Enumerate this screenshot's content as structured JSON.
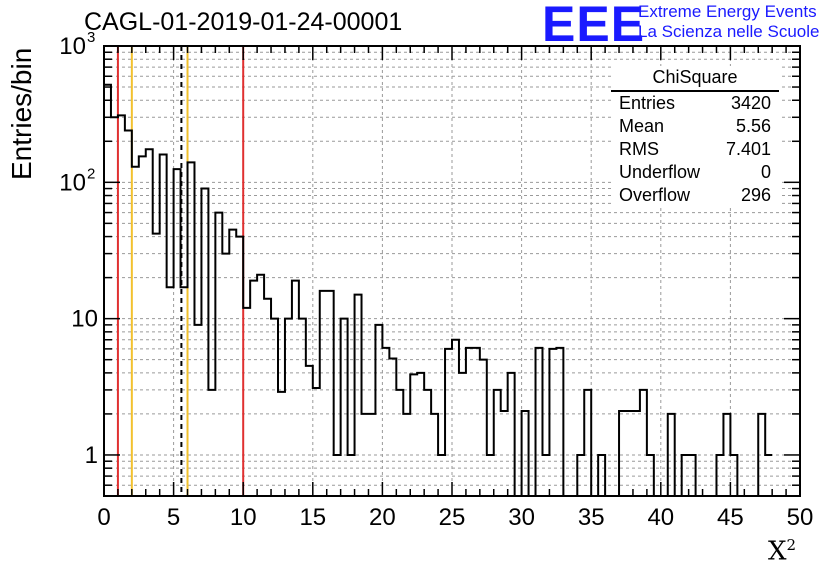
{
  "run_title": "CAGL-01-2019-01-24-00001",
  "branding": {
    "logo": "EEE",
    "line1": "Extreme Energy Events",
    "line2": "La Scienza nelle Scuole",
    "color": "#1a1aff"
  },
  "stats_box": {
    "title": "ChiSquare",
    "rows": [
      {
        "label": "Entries",
        "value": "3420"
      },
      {
        "label": "Mean",
        "value": "5.56"
      },
      {
        "label": "RMS",
        "value": "7.401"
      },
      {
        "label": "Underflow",
        "value": "0"
      },
      {
        "label": "Overflow",
        "value": "296"
      }
    ]
  },
  "chart_data": {
    "type": "histogram",
    "ylabel": "Entries/bin",
    "xlabel": "X",
    "xlabel_superscript": "2",
    "xlim": [
      0,
      50
    ],
    "ylim": [
      0.5,
      1000
    ],
    "yscale": "log",
    "grid": true,
    "bin_width": 0.5,
    "x_ticks": [
      0,
      5,
      10,
      15,
      20,
      25,
      30,
      35,
      40,
      45,
      50
    ],
    "y_ticks": [
      {
        "value": 1,
        "label": "1"
      },
      {
        "value": 10,
        "label": "10"
      },
      {
        "value": 100,
        "label": "10",
        "exp": "2"
      },
      {
        "value": 1000,
        "label": "10",
        "exp": "3"
      }
    ],
    "values": [
      520,
      300,
      310,
      240,
      130,
      155,
      175,
      42,
      160,
      17,
      125,
      17,
      140,
      9,
      90,
      3,
      60,
      30,
      45,
      40,
      12,
      19,
      21,
      14,
      10,
      2.9,
      10,
      19,
      10,
      4.5,
      3.1,
      16,
      16,
      1,
      10,
      1,
      15,
      2,
      2,
      9,
      6.1,
      5.1,
      3,
      2,
      3.9,
      4,
      3,
      2,
      1,
      6,
      7,
      4,
      6.1,
      6.1,
      5,
      1,
      3,
      2.1,
      4,
      0,
      2.1,
      0,
      6.1,
      1,
      6,
      6.1,
      0,
      0,
      1,
      3,
      0,
      1,
      0,
      0,
      2.1,
      2.1,
      2.1,
      3,
      1,
      0,
      0,
      2,
      0,
      1,
      1,
      0,
      0,
      0,
      1,
      2,
      1,
      0,
      0,
      0,
      2,
      1
    ],
    "vlines": [
      {
        "x": 1.0,
        "color": "#e03030",
        "style": "solid"
      },
      {
        "x": 2.0,
        "color": "#f2c12e",
        "style": "solid"
      },
      {
        "x": 5.56,
        "color": "#000000",
        "style": "dashed"
      },
      {
        "x": 6.0,
        "color": "#f2c12e",
        "style": "solid"
      },
      {
        "x": 10.0,
        "color": "#e03030",
        "style": "solid"
      }
    ]
  }
}
